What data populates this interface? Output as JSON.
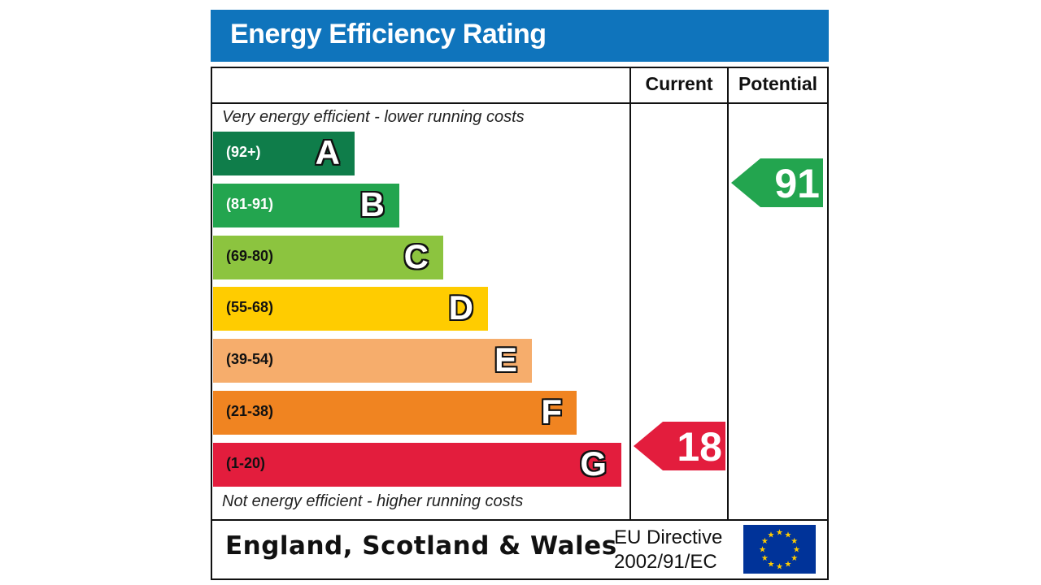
{
  "title": "Energy Efficiency Rating",
  "columns": {
    "current": "Current",
    "potential": "Potential"
  },
  "captions": {
    "top": "Very energy efficient - lower running costs",
    "bottom": "Not energy efficient - higher running costs"
  },
  "chart_data": {
    "type": "bar",
    "categories": [
      "A",
      "B",
      "C",
      "D",
      "E",
      "F",
      "G"
    ],
    "ranges": [
      "(92+)",
      "(81-91)",
      "(69-80)",
      "(55-68)",
      "(39-54)",
      "(21-38)",
      "(1-20)"
    ],
    "range_min": [
      92,
      81,
      69,
      55,
      39,
      21,
      1
    ],
    "colors": [
      "#0f7d4a",
      "#23a54f",
      "#8cc43f",
      "#ffcc00",
      "#f6ad6c",
      "#f08421",
      "#e31d3d"
    ],
    "range_text_colors": [
      "#ffffff",
      "#ffffff",
      "#111111",
      "#111111",
      "#111111",
      "#111111",
      "#111111"
    ],
    "current": {
      "value": 18,
      "band": "G",
      "color": "#e31d3d"
    },
    "potential": {
      "value": 91,
      "band": "B",
      "color": "#23a54f"
    }
  },
  "footer": {
    "country": "England, Scotland & Wales",
    "directive_line1": "EU Directive",
    "directive_line2": "2002/91/EC"
  },
  "icons": {
    "flag": "eu-flag-icon"
  }
}
